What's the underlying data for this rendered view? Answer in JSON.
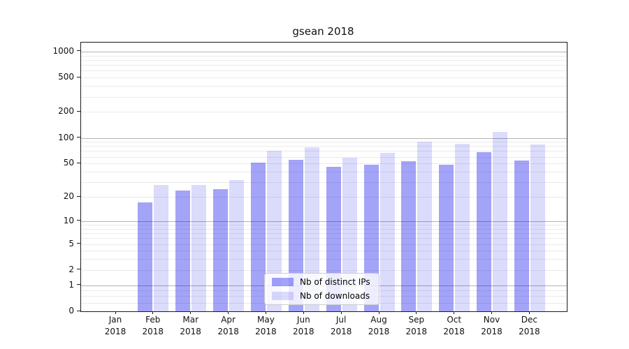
{
  "chart_data": {
    "type": "bar",
    "title": "gsean 2018",
    "categories": [
      "Jan",
      "Feb",
      "Mar",
      "Apr",
      "May",
      "Jun",
      "Jul",
      "Aug",
      "Sep",
      "Oct",
      "Nov",
      "Dec"
    ],
    "year": "2018",
    "series": [
      {
        "name": "Nb of distinct IPs",
        "color": "rgba(0,0,235,0.36)",
        "values": [
          0,
          17,
          24,
          25,
          51,
          55,
          46,
          48,
          53,
          48,
          68,
          54
        ]
      },
      {
        "name": "Nb of downloads",
        "color": "rgba(0,0,235,0.14)",
        "values": [
          0,
          28,
          28,
          32,
          71,
          78,
          59,
          67,
          91,
          85,
          118,
          84
        ]
      }
    ],
    "yscale": "log1p",
    "yticks": [
      0,
      1,
      2,
      5,
      10,
      20,
      50,
      100,
      200,
      500,
      1000
    ],
    "ylim": [
      0,
      1270
    ],
    "grid": true,
    "legend_position": "lower center",
    "colors": {
      "major_grid": "#b3b3b3",
      "minor_grid": "#ebebeb",
      "spine": "#1a1a1a"
    }
  }
}
